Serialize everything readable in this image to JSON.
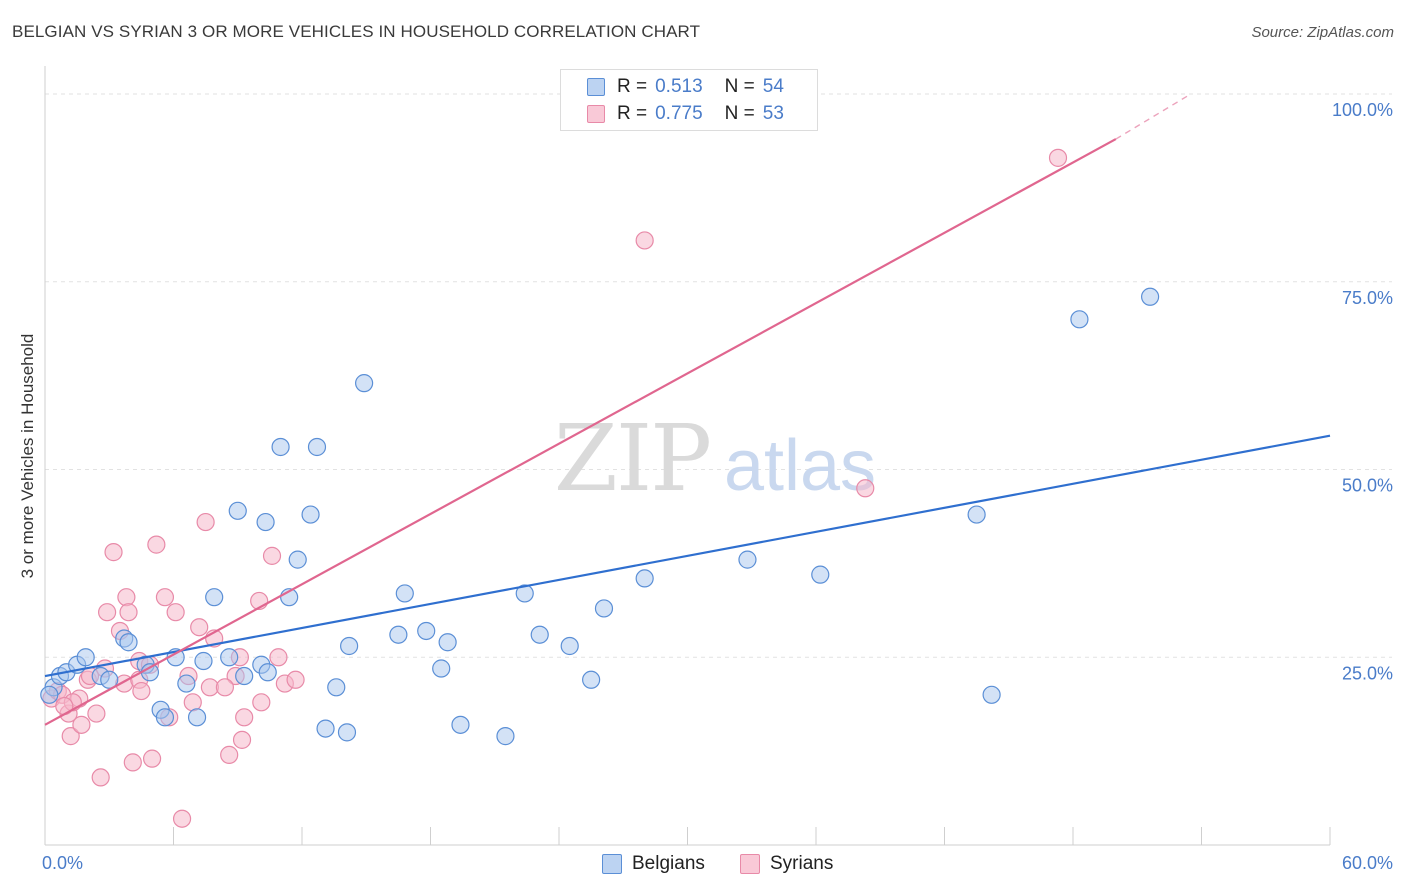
{
  "title": "BELGIAN VS SYRIAN 3 OR MORE VEHICLES IN HOUSEHOLD CORRELATION CHART",
  "source": "Source: ZipAtlas.com",
  "watermark": {
    "zip": "ZIP",
    "atlas": "atlas"
  },
  "legend_top": [
    {
      "r_label": "R =",
      "r_value": "0.513",
      "n_label": "N =",
      "n_value": "54"
    },
    {
      "r_label": "R =",
      "r_value": "0.775",
      "n_label": "N =",
      "n_value": "53"
    }
  ],
  "colors": {
    "belgian_fill": "#a8c6ee",
    "belgian_stroke": "#5b8fd6",
    "belgian_line": "#2f6fcf",
    "syrian_fill": "#f6b8cb",
    "syrian_stroke": "#e88aa8",
    "syrian_line": "#e0668f",
    "tick_label": "#4a7cc9",
    "grid": "#e2e2e2"
  },
  "chart_data": {
    "type": "scatter",
    "title": "BELGIAN VS SYRIAN 3 OR MORE VEHICLES IN HOUSEHOLD CORRELATION CHART",
    "xlabel": "",
    "ylabel": "3 or more Vehicles in Household",
    "xlim": [
      0,
      60
    ],
    "ylim": [
      0,
      102
    ],
    "x_tick_labels": [
      "0.0%",
      "60.0%"
    ],
    "y_ticks": [
      25,
      50,
      75,
      100
    ],
    "y_tick_labels": [
      "25.0%",
      "50.0%",
      "75.0%",
      "100.0%"
    ],
    "grid": true,
    "legend_placement": "top-center and bottom",
    "series": [
      {
        "name": "Belgians",
        "r": 0.513,
        "n": 54,
        "trend": {
          "x": [
            0,
            60
          ],
          "y": [
            22.5,
            54.5
          ]
        },
        "points": [
          [
            0.4,
            21.0
          ],
          [
            0.7,
            22.5
          ],
          [
            1.0,
            23.0
          ],
          [
            1.5,
            24.0
          ],
          [
            1.9,
            25.0
          ],
          [
            2.6,
            22.5
          ],
          [
            3.0,
            22.0
          ],
          [
            3.7,
            27.5
          ],
          [
            3.9,
            27.0
          ],
          [
            4.7,
            24.0
          ],
          [
            4.9,
            23.0
          ],
          [
            5.4,
            18.0
          ],
          [
            5.6,
            17.0
          ],
          [
            6.1,
            25.0
          ],
          [
            6.6,
            21.5
          ],
          [
            7.1,
            17.0
          ],
          [
            7.4,
            24.5
          ],
          [
            7.9,
            33.0
          ],
          [
            8.6,
            25.0
          ],
          [
            9.0,
            44.5
          ],
          [
            9.3,
            22.5
          ],
          [
            10.1,
            24.0
          ],
          [
            10.4,
            23.0
          ],
          [
            10.3,
            43.0
          ],
          [
            11.0,
            53.0
          ],
          [
            11.4,
            33.0
          ],
          [
            11.8,
            38.0
          ],
          [
            12.4,
            44.0
          ],
          [
            12.7,
            53.0
          ],
          [
            13.1,
            15.5
          ],
          [
            13.6,
            21.0
          ],
          [
            14.1,
            15.0
          ],
          [
            14.2,
            26.5
          ],
          [
            14.9,
            61.5
          ],
          [
            16.5,
            28.0
          ],
          [
            16.8,
            33.5
          ],
          [
            17.8,
            28.5
          ],
          [
            18.5,
            23.5
          ],
          [
            18.8,
            27.0
          ],
          [
            19.4,
            16.0
          ],
          [
            21.5,
            14.5
          ],
          [
            22.4,
            33.5
          ],
          [
            23.1,
            28.0
          ],
          [
            24.5,
            26.5
          ],
          [
            25.5,
            22.0
          ],
          [
            26.1,
            31.5
          ],
          [
            28.0,
            35.5
          ],
          [
            32.8,
            38.0
          ],
          [
            36.2,
            36.0
          ],
          [
            43.5,
            44.0
          ],
          [
            44.2,
            20.0
          ],
          [
            48.3,
            70.0
          ],
          [
            51.6,
            73.0
          ],
          [
            0.2,
            20.0
          ]
        ]
      },
      {
        "name": "Syrians",
        "r": 0.775,
        "n": 53,
        "trend": {
          "x": [
            0,
            50
          ],
          "y": [
            16.0,
            94.0
          ]
        },
        "trend_dashed": {
          "x": [
            50,
            53.5
          ],
          "y": [
            94.0,
            100.0
          ]
        },
        "points": [
          [
            0.3,
            19.5
          ],
          [
            0.6,
            20.5
          ],
          [
            0.8,
            20.0
          ],
          [
            1.1,
            17.5
          ],
          [
            1.2,
            14.5
          ],
          [
            1.6,
            19.5
          ],
          [
            1.7,
            16.0
          ],
          [
            2.0,
            22.0
          ],
          [
            2.4,
            17.5
          ],
          [
            2.6,
            9.0
          ],
          [
            2.8,
            23.5
          ],
          [
            2.9,
            31.0
          ],
          [
            3.2,
            39.0
          ],
          [
            3.5,
            28.5
          ],
          [
            3.7,
            21.5
          ],
          [
            3.8,
            33.0
          ],
          [
            3.9,
            31.0
          ],
          [
            4.1,
            11.0
          ],
          [
            4.4,
            24.5
          ],
          [
            4.4,
            22.0
          ],
          [
            4.5,
            20.5
          ],
          [
            5.0,
            11.5
          ],
          [
            5.2,
            40.0
          ],
          [
            5.6,
            33.0
          ],
          [
            5.8,
            17.0
          ],
          [
            6.1,
            31.0
          ],
          [
            6.4,
            3.5
          ],
          [
            6.7,
            22.5
          ],
          [
            6.9,
            19.0
          ],
          [
            7.2,
            29.0
          ],
          [
            7.5,
            43.0
          ],
          [
            7.7,
            21.0
          ],
          [
            7.9,
            27.5
          ],
          [
            8.6,
            12.0
          ],
          [
            8.9,
            22.5
          ],
          [
            9.1,
            25.0
          ],
          [
            9.2,
            14.0
          ],
          [
            9.3,
            17.0
          ],
          [
            10.0,
            32.5
          ],
          [
            10.1,
            19.0
          ],
          [
            10.6,
            38.5
          ],
          [
            10.9,
            25.0
          ],
          [
            11.2,
            21.5
          ],
          [
            11.7,
            22.0
          ],
          [
            27.9,
            100.0
          ],
          [
            28.0,
            80.5
          ],
          [
            38.3,
            47.5
          ],
          [
            47.3,
            91.5
          ],
          [
            1.3,
            19.0
          ],
          [
            2.1,
            22.5
          ],
          [
            4.9,
            24.0
          ],
          [
            8.4,
            21.0
          ],
          [
            0.9,
            18.5
          ]
        ]
      }
    ]
  },
  "bottom_legend": [
    {
      "label": "Belgians"
    },
    {
      "label": "Syrians"
    }
  ]
}
